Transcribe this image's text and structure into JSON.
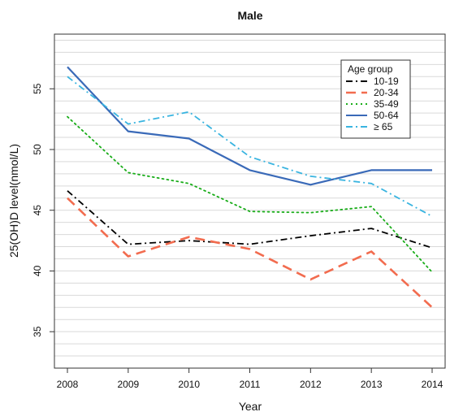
{
  "chart_data": {
    "type": "line",
    "title": "Male",
    "xlabel": "Year",
    "ylabel": "25(OH)D level(nmol/L)",
    "x": [
      2008,
      2009,
      2010,
      2011,
      2012,
      2013,
      2014
    ],
    "ylim": [
      32,
      59.5
    ],
    "yticks": [
      35,
      40,
      45,
      50,
      55
    ],
    "grid": true,
    "legend": {
      "title": "Age group",
      "position": "top-right"
    },
    "series": [
      {
        "name": "10-19",
        "color": "#000000",
        "dash": "dashdot",
        "values": [
          46.6,
          42.2,
          42.5,
          42.2,
          42.9,
          43.5,
          41.9
        ]
      },
      {
        "name": "20-34",
        "color": "#f26c4f",
        "dash": "dashed",
        "values": [
          46.0,
          41.2,
          42.8,
          41.8,
          39.3,
          41.6,
          37.0
        ]
      },
      {
        "name": "35-49",
        "color": "#1aad1a",
        "dash": "dotted",
        "values": [
          52.7,
          48.1,
          47.2,
          44.9,
          44.8,
          45.3,
          39.9
        ]
      },
      {
        "name": "50-64",
        "color": "#3a6ab8",
        "dash": "solid",
        "values": [
          56.8,
          51.5,
          50.9,
          48.3,
          47.1,
          48.3,
          48.3
        ]
      },
      {
        "name": "≥ 65",
        "color": "#39b4e0",
        "dash": "dashdot",
        "values": [
          56.0,
          52.1,
          53.1,
          49.4,
          47.8,
          47.2,
          44.5
        ]
      }
    ]
  }
}
